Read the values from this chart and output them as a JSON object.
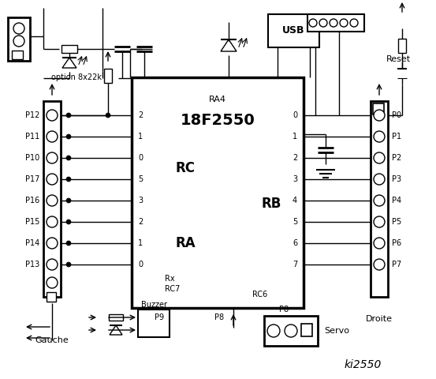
{
  "title": "ki2550",
  "bg_color": "#ffffff",
  "line_color": "#000000",
  "chip_label": "18F2550",
  "chip_sublabel": "RA4",
  "rc_label": "RC",
  "ra_label": "RA",
  "rb_label": "RB",
  "rc_pins": [
    "2",
    "1",
    "0",
    "5",
    "3",
    "2",
    "1",
    "0"
  ],
  "rb_pins": [
    "0",
    "1",
    "2",
    "3",
    "4",
    "5",
    "6",
    "7"
  ],
  "left_pins": [
    "P12",
    "P11",
    "P10",
    "P17",
    "P16",
    "P15",
    "P14",
    "P13"
  ],
  "right_pins": [
    "P0",
    "P1",
    "P2",
    "P3",
    "P4",
    "P5",
    "P6",
    "P7"
  ],
  "gauche_label": "Gauche",
  "droite_label": "Droite",
  "option_label": "option 8x22k",
  "reset_label": "Reset",
  "usb_label": "USB",
  "p8_label": "P8",
  "p9_label": "P9",
  "servo_label": "Servo",
  "buzzer_label": "Buzzer"
}
